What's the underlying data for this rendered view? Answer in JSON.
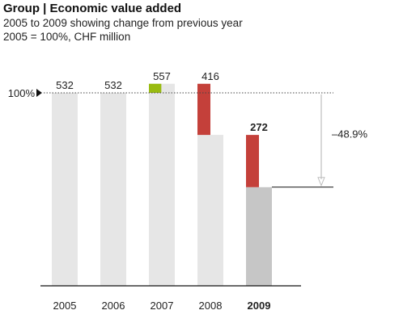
{
  "title": "Group | Economic value added",
  "subtitle_line1": "2005 to 2009 showing change from previous year",
  "subtitle_line2": "2005 = 100%, CHF million",
  "colors": {
    "base": "#e6e6e6",
    "base_2009": "#c6c6c6",
    "increase": "#99bb11",
    "decrease": "#c4403a",
    "axis": "#111111",
    "arrow": "#bdbdbd"
  },
  "chart_data": {
    "type": "bar",
    "style": "waterfall",
    "categories": [
      "2005",
      "2006",
      "2007",
      "2008",
      "2009"
    ],
    "values": [
      532,
      532,
      557,
      416,
      272
    ],
    "value_labels": [
      "532",
      "532",
      "557",
      "416",
      "272"
    ],
    "highlight_category": "2009",
    "reference": {
      "label": "100%",
      "value": 532
    },
    "change_annotation": {
      "label": "–48.9%",
      "from": 532,
      "to": 272
    },
    "ylim": [
      0,
      650
    ],
    "xlabel": "",
    "ylabel": "",
    "grid": false,
    "legend": "none"
  }
}
